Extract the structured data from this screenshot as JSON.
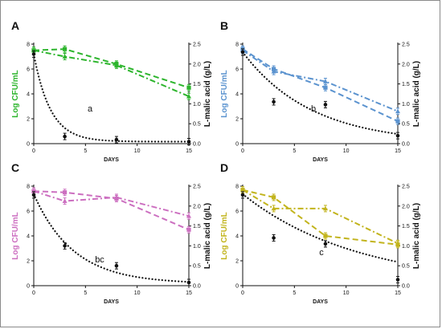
{
  "chart_data": [
    {
      "type": "line",
      "panel": "A",
      "color": "#2db52d",
      "xlabel": "DAYS",
      "ylabel": "Log CFU/mL",
      "ylabel_right": "L-malic acid (g/L)",
      "xlim": [
        0,
        15
      ],
      "ylim": [
        0,
        8
      ],
      "ylim_right": [
        0,
        2.5
      ],
      "xticks": [
        0,
        5,
        10,
        15
      ],
      "yticks": [
        0,
        2,
        4,
        6,
        8
      ],
      "yticks_right": [
        0.0,
        0.5,
        1.0,
        1.5,
        2.0,
        2.5
      ],
      "annotation": "a",
      "series": [
        {
          "style": "dash",
          "marker": "square",
          "axis": "left",
          "x": [
            0,
            3,
            8,
            15
          ],
          "y": [
            7.5,
            7.6,
            6.4,
            4.5
          ]
        },
        {
          "style": "dashdot",
          "marker": "triangle",
          "axis": "left",
          "x": [
            0,
            3,
            8,
            15
          ],
          "y": [
            7.5,
            7.0,
            6.3,
            3.8
          ]
        },
        {
          "style": "dot",
          "marker": "circle",
          "axis": "right",
          "x": [
            0,
            3,
            8,
            15
          ],
          "y": [
            2.25,
            0.18,
            0.1,
            0.05
          ]
        }
      ],
      "fit_right": {
        "a0": 2.25,
        "k": 0.62,
        "c": 0.05
      }
    },
    {
      "type": "line",
      "panel": "B",
      "color": "#5b93cf",
      "xlabel": "DAYS",
      "ylabel": "Log CFU/mL",
      "ylabel_right": "L-malic acid (g/L)",
      "xlim": [
        0,
        15
      ],
      "ylim": [
        0,
        8
      ],
      "ylim_right": [
        0,
        2.5
      ],
      "xticks": [
        0,
        5,
        10,
        15
      ],
      "yticks": [
        0,
        2,
        4,
        6,
        8
      ],
      "yticks_right": [
        0.0,
        0.5,
        1.0,
        1.5,
        2.0,
        2.5
      ],
      "annotation": "b",
      "series": [
        {
          "style": "dash",
          "marker": "square",
          "axis": "left",
          "x": [
            0,
            3,
            8,
            15
          ],
          "y": [
            7.6,
            6.0,
            4.5,
            1.8
          ]
        },
        {
          "style": "dashdot",
          "marker": "triangle",
          "axis": "left",
          "x": [
            0,
            3,
            8,
            15
          ],
          "y": [
            7.5,
            5.8,
            5.0,
            2.6
          ]
        },
        {
          "style": "dot",
          "marker": "circle",
          "axis": "right",
          "x": [
            0,
            3,
            8,
            15
          ],
          "y": [
            2.3,
            1.05,
            0.98,
            0.2
          ]
        }
      ],
      "fit_right": {
        "a0": 2.3,
        "k": 0.15,
        "c": 0.0
      }
    },
    {
      "type": "line",
      "panel": "C",
      "color": "#cc6fc0",
      "xlabel": "DAYS",
      "ylabel": "Log CFU/mL",
      "ylabel_right": "L-malic acid (g/L)",
      "xlim": [
        0,
        15
      ],
      "ylim": [
        0,
        8
      ],
      "ylim_right": [
        0,
        2.5
      ],
      "xticks": [
        0,
        5,
        10,
        15
      ],
      "yticks": [
        0,
        2,
        4,
        6,
        8
      ],
      "yticks_right": [
        0.0,
        0.5,
        1.0,
        1.5,
        2.0,
        2.5
      ],
      "annotation": "bc",
      "series": [
        {
          "style": "dash",
          "marker": "square",
          "axis": "left",
          "x": [
            0,
            3,
            8,
            15
          ],
          "y": [
            7.6,
            7.5,
            7.0,
            4.5
          ]
        },
        {
          "style": "dashdot",
          "marker": "triangle",
          "axis": "left",
          "x": [
            0,
            3,
            8,
            15
          ],
          "y": [
            7.6,
            6.8,
            7.1,
            5.6
          ]
        },
        {
          "style": "dot",
          "marker": "circle",
          "axis": "right",
          "x": [
            0,
            3,
            8,
            15
          ],
          "y": [
            2.28,
            1.0,
            0.5,
            0.08
          ]
        }
      ],
      "fit_right": {
        "a0": 2.3,
        "k": 0.26,
        "c": 0.05
      }
    },
    {
      "type": "line",
      "panel": "D",
      "color": "#c2b41d",
      "xlabel": "DAYS",
      "ylabel": "Log CFU/mL",
      "ylabel_right": "L-malic acid (g/L)",
      "xlim": [
        0,
        15
      ],
      "ylim": [
        0,
        8
      ],
      "ylim_right": [
        0,
        2.5
      ],
      "xticks": [
        0,
        5,
        10,
        15
      ],
      "yticks": [
        0,
        2,
        4,
        6,
        8
      ],
      "yticks_right": [
        0.0,
        0.5,
        1.0,
        1.5,
        2.0,
        2.5
      ],
      "annotation": "c",
      "series": [
        {
          "style": "dash",
          "marker": "square",
          "axis": "left",
          "x": [
            0,
            3,
            8,
            15
          ],
          "y": [
            7.7,
            7.1,
            4.0,
            3.3
          ]
        },
        {
          "style": "dashdot",
          "marker": "triangle",
          "axis": "left",
          "x": [
            0,
            3,
            8,
            15
          ],
          "y": [
            7.7,
            6.2,
            6.2,
            3.4
          ]
        },
        {
          "style": "dot",
          "marker": "circle",
          "axis": "right",
          "x": [
            0,
            3,
            8,
            15
          ],
          "y": [
            2.28,
            1.2,
            1.05,
            0.15
          ]
        }
      ],
      "fit_right": {
        "a0": 2.3,
        "k": 0.09,
        "c": 0.0
      }
    }
  ]
}
